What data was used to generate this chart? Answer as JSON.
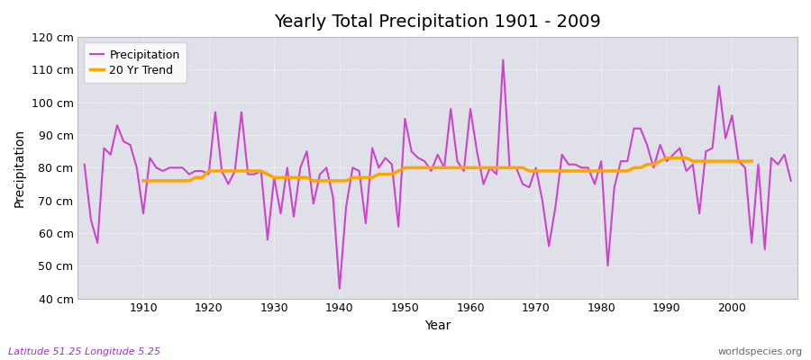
{
  "title": "Yearly Total Precipitation 1901 - 2009",
  "ylabel": "Precipitation",
  "xlabel": "Year",
  "footer_left": "Latitude 51.25 Longitude 5.25",
  "footer_right": "worldspecies.org",
  "precip_color": "#cc44cc",
  "trend_color": "#FFA500",
  "fig_bg_color": "#ffffff",
  "plot_bg_color": "#e0e0e8",
  "ylim": [
    40,
    120
  ],
  "yticks": [
    40,
    50,
    60,
    70,
    80,
    90,
    100,
    110,
    120
  ],
  "xlim": [
    1900,
    2010
  ],
  "years": [
    1901,
    1902,
    1903,
    1904,
    1905,
    1906,
    1907,
    1908,
    1909,
    1910,
    1911,
    1912,
    1913,
    1914,
    1915,
    1916,
    1917,
    1918,
    1919,
    1920,
    1921,
    1922,
    1923,
    1924,
    1925,
    1926,
    1927,
    1928,
    1929,
    1930,
    1931,
    1932,
    1933,
    1934,
    1935,
    1936,
    1937,
    1938,
    1939,
    1940,
    1941,
    1942,
    1943,
    1944,
    1945,
    1946,
    1947,
    1948,
    1949,
    1950,
    1951,
    1952,
    1953,
    1954,
    1955,
    1956,
    1957,
    1958,
    1959,
    1960,
    1961,
    1962,
    1963,
    1964,
    1965,
    1966,
    1967,
    1968,
    1969,
    1970,
    1971,
    1972,
    1973,
    1974,
    1975,
    1976,
    1977,
    1978,
    1979,
    1980,
    1981,
    1982,
    1983,
    1984,
    1985,
    1986,
    1987,
    1988,
    1989,
    1990,
    1991,
    1992,
    1993,
    1994,
    1995,
    1996,
    1997,
    1998,
    1999,
    2000,
    2001,
    2002,
    2003,
    2004,
    2005,
    2006,
    2007,
    2008,
    2009
  ],
  "precipitation": [
    81,
    64,
    57,
    86,
    84,
    93,
    88,
    87,
    80,
    66,
    83,
    80,
    79,
    80,
    80,
    80,
    78,
    79,
    79,
    78,
    97,
    79,
    75,
    79,
    97,
    78,
    78,
    79,
    58,
    77,
    66,
    80,
    65,
    80,
    85,
    69,
    78,
    80,
    71,
    43,
    68,
    80,
    79,
    63,
    86,
    80,
    83,
    81,
    62,
    95,
    85,
    83,
    82,
    79,
    84,
    80,
    98,
    82,
    79,
    98,
    85,
    75,
    80,
    78,
    113,
    80,
    80,
    75,
    74,
    80,
    70,
    56,
    68,
    84,
    81,
    81,
    80,
    80,
    75,
    82,
    50,
    74,
    82,
    82,
    92,
    92,
    87,
    80,
    87,
    82,
    84,
    86,
    79,
    81,
    66,
    85,
    86,
    105,
    89,
    96,
    82,
    80,
    57,
    81,
    55,
    83,
    81,
    84,
    76
  ],
  "trend": [
    null,
    null,
    null,
    null,
    null,
    null,
    null,
    null,
    null,
    76,
    76,
    76,
    76,
    76,
    76,
    76,
    76,
    77,
    77,
    79,
    79,
    79,
    79,
    79,
    79,
    79,
    79,
    79,
    78,
    77,
    77,
    77,
    77,
    77,
    77,
    76,
    76,
    76,
    76,
    76,
    76,
    77,
    77,
    77,
    77,
    78,
    78,
    78,
    79,
    80,
    80,
    80,
    80,
    80,
    80,
    80,
    80,
    80,
    80,
    80,
    80,
    80,
    80,
    80,
    80,
    80,
    80,
    80,
    79,
    79,
    79,
    79,
    79,
    79,
    79,
    79,
    79,
    79,
    79,
    79,
    79,
    79,
    79,
    79,
    80,
    80,
    81,
    81,
    82,
    83,
    83,
    83,
    83,
    82,
    82,
    82,
    82,
    82,
    82,
    82,
    82,
    82,
    82,
    null,
    null,
    null,
    null,
    null,
    null
  ]
}
